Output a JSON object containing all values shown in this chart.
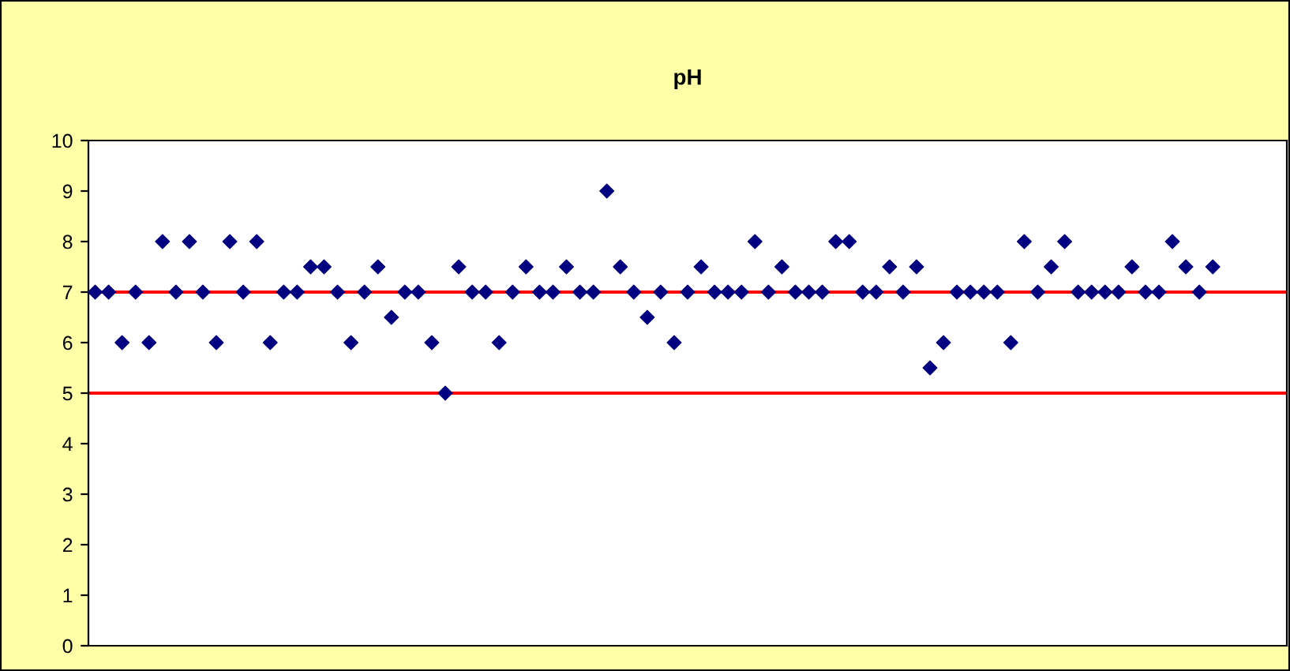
{
  "chart_data": {
    "type": "scatter",
    "title": "pH",
    "categories": [
      null,
      null,
      null,
      null,
      null,
      null,
      null,
      null,
      null,
      null,
      null,
      null,
      null,
      null,
      null,
      null,
      null,
      null,
      null,
      null,
      null,
      null,
      null,
      null,
      null,
      null,
      null,
      null,
      null,
      null,
      null,
      null,
      null,
      null,
      null,
      null,
      null,
      null,
      null,
      null,
      null,
      null,
      null,
      null,
      null,
      null,
      null,
      null,
      null,
      null,
      null,
      null,
      null,
      null,
      null,
      null,
      null,
      null,
      null,
      null,
      null,
      null,
      null,
      null,
      null,
      null,
      null,
      null,
      null,
      null,
      null,
      null,
      null,
      null,
      null,
      null,
      null,
      null,
      null,
      null,
      null,
      null,
      null,
      null,
      null,
      null,
      null,
      null,
      null
    ],
    "series": [
      {
        "color": "#000080",
        "values": [
          7,
          7,
          6,
          7,
          6,
          8,
          7,
          8,
          7,
          6,
          8,
          7,
          8,
          6,
          7,
          7,
          7.5,
          7.5,
          7,
          6,
          7,
          7.5,
          6.5,
          7,
          7,
          6,
          5,
          7.5,
          7,
          7,
          6,
          7,
          7.5,
          7,
          7,
          7.5,
          7,
          7,
          9,
          7.5,
          7,
          6.5,
          7,
          6,
          7,
          7.5,
          7,
          7,
          7,
          8,
          7,
          7.5,
          7,
          7,
          7,
          8,
          8,
          7,
          7,
          7.5,
          7,
          7.5,
          5.5,
          6,
          7,
          7,
          7,
          7,
          6,
          8,
          7,
          7.5,
          8,
          7,
          7,
          7,
          7,
          7.5,
          7,
          7,
          8,
          7.5,
          7,
          7.5,
          null,
          null,
          null,
          null,
          null
        ]
      }
    ],
    "ylim": [
      0,
      10
    ],
    "yticks": [
      0,
      1,
      2,
      3,
      4,
      5,
      6,
      7,
      8,
      9,
      10
    ],
    "ref_lines": [
      {
        "axis": "y",
        "value": 7,
        "color": "#ff0000"
      },
      {
        "axis": "y",
        "value": 5,
        "color": "#ff0000"
      }
    ],
    "marker": "diamond",
    "grid": false,
    "legend": false,
    "tick_labels": "y"
  }
}
